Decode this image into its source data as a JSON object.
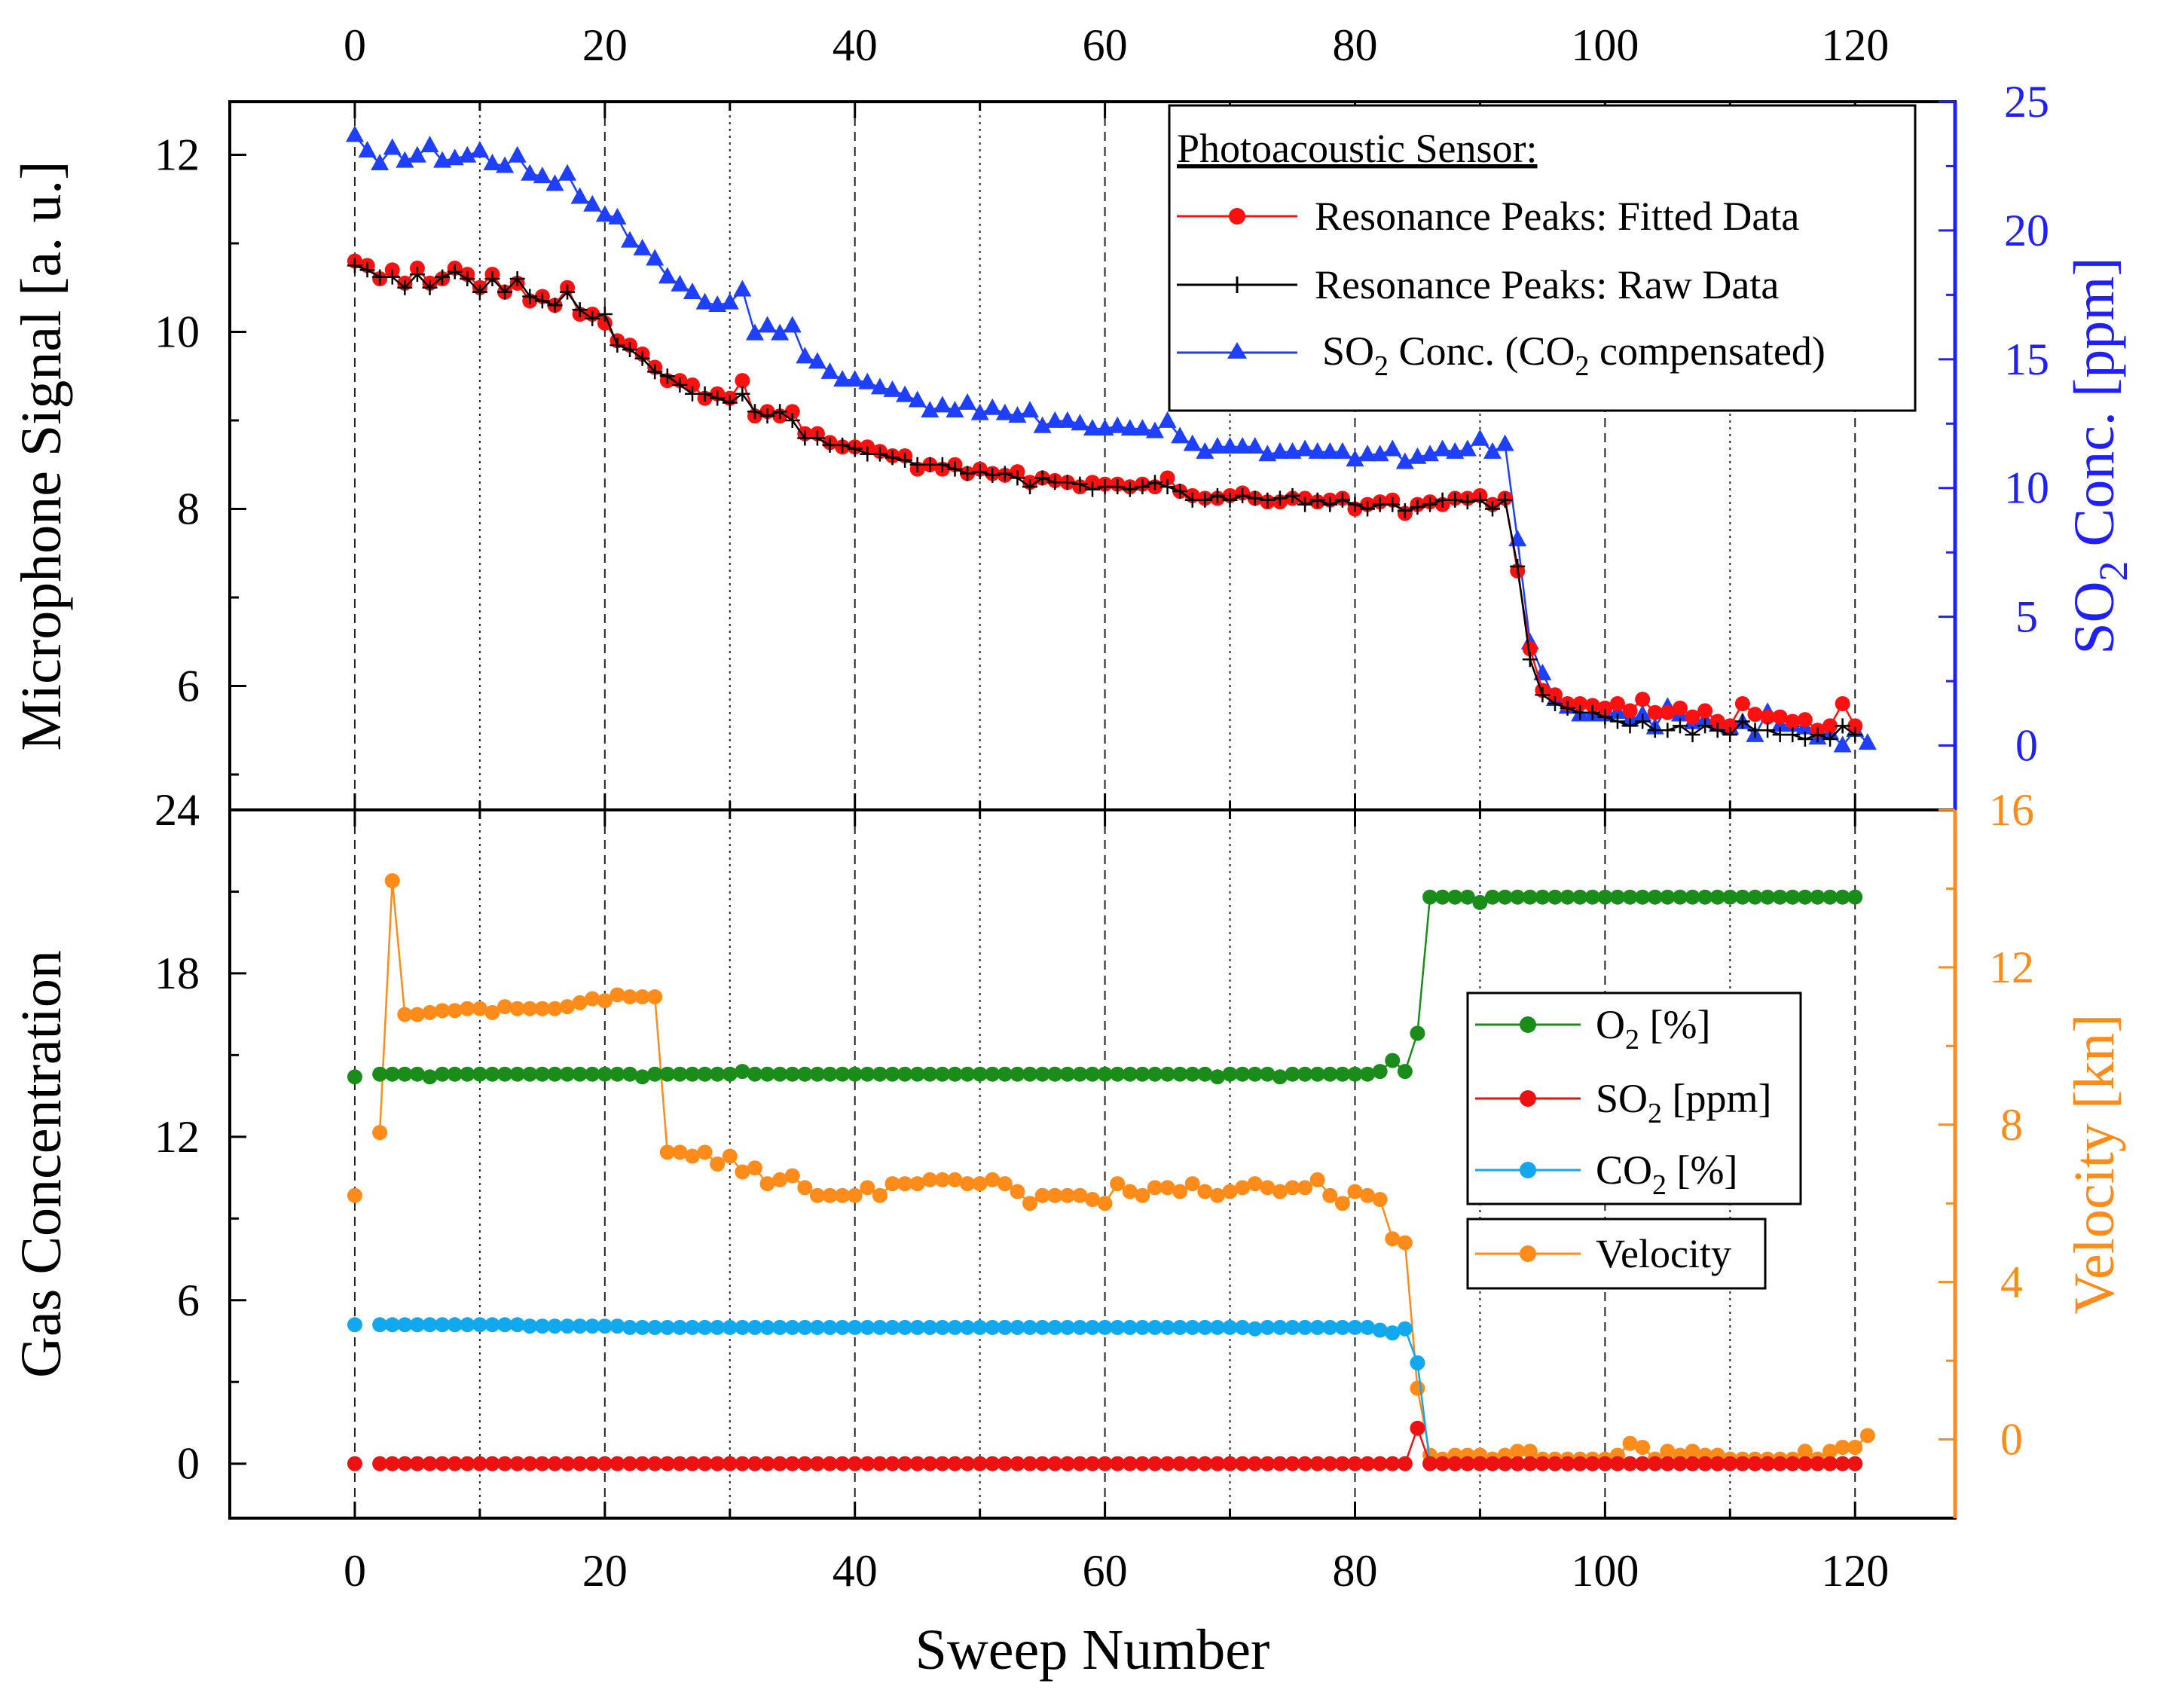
{
  "chart_data": [
    {
      "type": "line",
      "panel": "top",
      "title": "",
      "xlabel": "Sweep Number",
      "ylabel": "Microphone Signal [a. u.]",
      "y2label": "SO2 Conc. [ppm]",
      "x_ticks": [
        "0",
        "20",
        "40",
        "60",
        "80",
        "100",
        "120"
      ],
      "y_ticks": [
        "6",
        "8",
        "10",
        "12"
      ],
      "y2_ticks": [
        "0",
        "5",
        "10",
        "15",
        "20",
        "25"
      ],
      "xlim": [
        -10,
        128
      ],
      "ylim": [
        4.6,
        12.6
      ],
      "y2lim": [
        -2.5,
        25
      ],
      "y2_color": "#1f1fff",
      "legend": {
        "title": "Photoacoustic Sensor:",
        "placement": "top-right",
        "entries": [
          {
            "label": "Resonance Peaks: Fitted Data",
            "color": "#ff1010",
            "marker": "circle"
          },
          {
            "label": "Resonance Peaks: Raw Data",
            "color": "#000000",
            "marker": "plus"
          },
          {
            "label_main": "SO",
            "label_sub": "2",
            "label_mid": " Conc.  (CO",
            "label_sub2": "2",
            "label_end": " compensated)",
            "color": "#1f3fff",
            "marker": "triangle"
          }
        ]
      },
      "series": [
        {
          "name": "Resonance Peaks: Fitted Data",
          "axis": "left",
          "color": "#ff1010",
          "marker": "circle",
          "x_start": 0,
          "values": [
            10.8,
            10.75,
            10.6,
            10.7,
            10.55,
            10.72,
            10.55,
            10.6,
            10.72,
            10.65,
            10.5,
            10.65,
            10.45,
            10.55,
            10.35,
            10.4,
            10.3,
            10.5,
            10.2,
            10.2,
            10.1,
            9.9,
            9.85,
            9.75,
            9.6,
            9.45,
            9.45,
            9.4,
            9.25,
            9.3,
            9.25,
            9.45,
            9.05,
            9.1,
            9.05,
            9.1,
            8.85,
            8.85,
            8.75,
            8.7,
            8.7,
            8.7,
            8.65,
            8.6,
            8.6,
            8.45,
            8.5,
            8.45,
            8.5,
            8.4,
            8.45,
            8.4,
            8.38,
            8.42,
            8.3,
            8.35,
            8.32,
            8.3,
            8.25,
            8.3,
            8.28,
            8.28,
            8.25,
            8.28,
            8.25,
            8.35,
            8.2,
            8.15,
            8.12,
            8.12,
            8.15,
            8.18,
            8.12,
            8.08,
            8.08,
            8.12,
            8.12,
            8.08,
            8.1,
            8.12,
            8.0,
            8.05,
            8.08,
            8.1,
            7.95,
            8.05,
            8.08,
            8.05,
            8.12,
            8.12,
            8.15,
            8.05,
            8.12,
            7.3,
            6.42,
            5.95,
            5.9,
            5.8,
            5.8,
            5.78,
            5.75,
            5.8,
            5.72,
            5.85,
            5.7,
            5.7,
            5.75,
            5.65,
            5.72,
            5.6,
            5.55,
            5.8,
            5.68,
            5.65,
            5.65,
            5.6,
            5.62,
            5.5,
            5.55,
            5.8,
            5.55
          ]
        },
        {
          "name": "Resonance Peaks: Raw Data",
          "axis": "left",
          "color": "#000000",
          "marker": "plus",
          "x_start": 0,
          "values": [
            10.75,
            10.7,
            10.62,
            10.62,
            10.5,
            10.65,
            10.5,
            10.62,
            10.68,
            10.6,
            10.45,
            10.6,
            10.45,
            10.6,
            10.4,
            10.35,
            10.3,
            10.45,
            10.25,
            10.15,
            10.2,
            9.85,
            9.8,
            9.7,
            9.55,
            9.5,
            9.4,
            9.3,
            9.3,
            9.25,
            9.2,
            9.3,
            9.1,
            9.05,
            9.1,
            9.0,
            8.8,
            8.8,
            8.72,
            8.72,
            8.68,
            8.62,
            8.62,
            8.58,
            8.55,
            8.5,
            8.5,
            8.5,
            8.45,
            8.4,
            8.42,
            8.38,
            8.4,
            8.35,
            8.25,
            8.35,
            8.3,
            8.3,
            8.28,
            8.22,
            8.25,
            8.25,
            8.22,
            8.25,
            8.3,
            8.25,
            8.2,
            8.1,
            8.1,
            8.15,
            8.1,
            8.15,
            8.12,
            8.1,
            8.12,
            8.15,
            8.05,
            8.1,
            8.05,
            8.1,
            8.05,
            8.0,
            8.05,
            8.05,
            7.98,
            8.02,
            8.05,
            8.1,
            8.1,
            8.08,
            8.1,
            8.0,
            8.1,
            7.35,
            6.3,
            5.9,
            5.8,
            5.75,
            5.7,
            5.7,
            5.65,
            5.6,
            5.55,
            5.6,
            5.5,
            5.5,
            5.55,
            5.45,
            5.55,
            5.5,
            5.45,
            5.6,
            5.5,
            5.5,
            5.45,
            5.45,
            5.4,
            5.45,
            5.4,
            5.55,
            5.45
          ]
        },
        {
          "name": "SO2 Conc. (CO2 compensated)",
          "axis": "right",
          "color": "#1f3fff",
          "marker": "triangle",
          "x_start": 0,
          "values": [
            23.7,
            23.1,
            22.6,
            23.2,
            22.7,
            22.9,
            23.3,
            22.7,
            22.8,
            22.9,
            23.1,
            22.6,
            22.5,
            22.9,
            22.2,
            22.1,
            21.8,
            22.2,
            21.3,
            21.0,
            20.6,
            20.5,
            19.6,
            19.3,
            18.9,
            18.2,
            17.9,
            17.6,
            17.2,
            17.1,
            17.2,
            17.7,
            16.0,
            16.3,
            16.0,
            16.3,
            15.1,
            14.9,
            14.5,
            14.2,
            14.2,
            14.1,
            13.9,
            13.8,
            13.6,
            13.4,
            13.0,
            13.2,
            13.0,
            13.3,
            12.9,
            13.1,
            12.9,
            12.8,
            13.0,
            12.4,
            12.6,
            12.6,
            12.5,
            12.3,
            12.3,
            12.4,
            12.3,
            12.3,
            12.2,
            12.6,
            12.0,
            11.7,
            11.4,
            11.6,
            11.6,
            11.6,
            11.6,
            11.3,
            11.4,
            11.4,
            11.5,
            11.4,
            11.4,
            11.4,
            11.1,
            11.3,
            11.3,
            11.5,
            11.0,
            11.2,
            11.3,
            11.5,
            11.4,
            11.5,
            11.9,
            11.4,
            11.7,
            8.0,
            4.0,
            2.8,
            1.8,
            1.5,
            1.2,
            1.2,
            1.2,
            1.3,
            1.0,
            1.2,
            0.7,
            1.5,
            1.2,
            0.9,
            1.0,
            0.8,
            0.7,
            0.9,
            0.4,
            1.3,
            0.8,
            0.8,
            0.7,
            0.3,
            0.5,
            0.0,
            0.6,
            0.1
          ]
        }
      ]
    },
    {
      "type": "line",
      "panel": "bottom",
      "title": "",
      "xlabel": "Sweep Number",
      "ylabel": "Gas Concentration",
      "y2label": "Velocity [kn]",
      "x_ticks": [
        "0",
        "20",
        "40",
        "60",
        "80",
        "100",
        "120"
      ],
      "y_ticks": [
        "0",
        "6",
        "12",
        "18",
        "24"
      ],
      "y2_ticks": [
        "0",
        "4",
        "8",
        "12",
        "16"
      ],
      "xlim": [
        -10,
        128
      ],
      "ylim": [
        -2,
        24
      ],
      "y2lim": [
        -2,
        16
      ],
      "y2_color": "#ff8c1a",
      "legend": {
        "placement": "center-right",
        "entries": [
          {
            "label_main": "O",
            "label_sub": "2",
            "label_end": " [%]",
            "color": "#1a8c1a"
          },
          {
            "label_main": "SO",
            "label_sub": "2",
            "label_end": " [ppm]",
            "color": "#ee1111"
          },
          {
            "label_main": "CO",
            "label_sub": "2",
            "label_end": " [%]",
            "color": "#12a8ee"
          },
          {
            "label": "Velocity",
            "color": "#ff8c1a"
          }
        ]
      },
      "series": [
        {
          "name": "O2 [%]",
          "axis": "left",
          "color": "#1a8c1a",
          "marker": "circle",
          "x_start": 0,
          "values": [
            14.2,
            null,
            14.3,
            14.3,
            14.3,
            14.3,
            14.2,
            14.3,
            14.3,
            14.3,
            14.3,
            14.3,
            14.3,
            14.3,
            14.3,
            14.3,
            14.3,
            14.3,
            14.3,
            14.3,
            14.3,
            14.3,
            14.3,
            14.2,
            14.3,
            14.3,
            14.3,
            14.3,
            14.3,
            14.3,
            14.3,
            14.4,
            14.3,
            14.3,
            14.3,
            14.3,
            14.3,
            14.3,
            14.3,
            14.3,
            14.3,
            14.3,
            14.3,
            14.3,
            14.3,
            14.3,
            14.3,
            14.3,
            14.3,
            14.3,
            14.3,
            14.3,
            14.3,
            14.3,
            14.3,
            14.3,
            14.3,
            14.3,
            14.3,
            14.3,
            14.3,
            14.3,
            14.3,
            14.3,
            14.3,
            14.3,
            14.3,
            14.3,
            14.3,
            14.2,
            14.3,
            14.3,
            14.3,
            14.3,
            14.2,
            14.3,
            14.3,
            14.3,
            14.3,
            14.3,
            14.3,
            14.3,
            14.4,
            14.8,
            14.4,
            15.8,
            20.8,
            20.8,
            20.8,
            20.8,
            20.6,
            20.8,
            20.8,
            20.8,
            20.8,
            20.8,
            20.8,
            20.8,
            20.8,
            20.8,
            20.8,
            20.8,
            20.8,
            20.8,
            20.8,
            20.8,
            20.8,
            20.8,
            20.8,
            20.8,
            20.8,
            20.8,
            20.8,
            20.8,
            20.8,
            20.8,
            20.8,
            20.8,
            20.8,
            20.8,
            20.8
          ]
        },
        {
          "name": "SO2 [ppm]",
          "axis": "left",
          "color": "#ee1111",
          "marker": "circle",
          "x_start": 0,
          "values": [
            0,
            null,
            0,
            0,
            0,
            0,
            0,
            0,
            0,
            0,
            0,
            0,
            0,
            0,
            0,
            0,
            0,
            0,
            0,
            0,
            0,
            0,
            0,
            0,
            0,
            0,
            0,
            0,
            0,
            0,
            0,
            0,
            0,
            0,
            0,
            0,
            0,
            0,
            0,
            0,
            0,
            0,
            0,
            0,
            0,
            0,
            0,
            0,
            0,
            0,
            0,
            0,
            0,
            0,
            0,
            0,
            0,
            0,
            0,
            0,
            0,
            0,
            0,
            0,
            0,
            0,
            0,
            0,
            0,
            0,
            0,
            0,
            0,
            0,
            0,
            0,
            0,
            0,
            0,
            0,
            0,
            0,
            0,
            0,
            0,
            1.3,
            0,
            0,
            0,
            0,
            0,
            0,
            0,
            0,
            0,
            0,
            0,
            0,
            0,
            0,
            0,
            0,
            0,
            0,
            0,
            0,
            0,
            0,
            0,
            0,
            0,
            0,
            0,
            0,
            0,
            0,
            0,
            0,
            0,
            0,
            0
          ]
        },
        {
          "name": "CO2 [%]",
          "axis": "left",
          "color": "#12a8ee",
          "marker": "circle",
          "x_start": 0,
          "values": [
            5.1,
            null,
            5.1,
            5.1,
            5.1,
            5.1,
            5.1,
            5.1,
            5.1,
            5.1,
            5.1,
            5.1,
            5.1,
            5.1,
            5.05,
            5.05,
            5.05,
            5.05,
            5.05,
            5.05,
            5.05,
            5.05,
            5.0,
            5.0,
            5.0,
            5.0,
            5.0,
            5.0,
            5.0,
            5.0,
            5.0,
            5.0,
            5.0,
            5.0,
            5.0,
            5.0,
            5.0,
            5.0,
            5.0,
            5.0,
            5.0,
            5.0,
            5.0,
            5.0,
            5.0,
            5.0,
            5.0,
            5.0,
            5.0,
            5.0,
            5.0,
            5.0,
            5.0,
            5.0,
            5.0,
            5.0,
            5.0,
            5.0,
            5.0,
            5.0,
            5.0,
            5.0,
            5.0,
            5.0,
            5.0,
            5.0,
            5.0,
            5.0,
            5.0,
            5.0,
            5.0,
            5.0,
            4.95,
            5.0,
            5.0,
            5.0,
            5.0,
            5.0,
            5.0,
            5.0,
            5.0,
            5.0,
            4.9,
            4.8,
            4.95,
            3.7,
            0,
            0,
            0,
            0,
            0,
            0,
            0,
            0,
            0,
            0,
            0,
            0,
            0,
            0,
            0,
            0,
            0,
            0,
            0,
            0,
            0,
            0,
            0,
            0,
            0,
            0,
            0,
            0,
            0,
            0,
            0,
            0,
            0,
            0,
            0
          ]
        },
        {
          "name": "Velocity",
          "axis": "right",
          "color": "#ff8c1a",
          "marker": "circle",
          "x_start": 0,
          "values": [
            6.2,
            null,
            7.8,
            14.2,
            10.8,
            10.8,
            10.85,
            10.9,
            10.9,
            10.95,
            10.95,
            10.85,
            11.0,
            10.95,
            10.95,
            10.95,
            10.95,
            11.0,
            11.1,
            11.2,
            11.15,
            11.3,
            11.25,
            11.25,
            11.25,
            7.3,
            7.3,
            7.2,
            7.3,
            7.0,
            7.2,
            6.8,
            6.9,
            6.5,
            6.6,
            6.7,
            6.4,
            6.2,
            6.2,
            6.2,
            6.2,
            6.4,
            6.2,
            6.5,
            6.5,
            6.5,
            6.6,
            6.6,
            6.6,
            6.5,
            6.5,
            6.6,
            6.5,
            6.3,
            6.0,
            6.2,
            6.2,
            6.2,
            6.2,
            6.1,
            6.0,
            6.5,
            6.3,
            6.2,
            6.4,
            6.4,
            6.3,
            6.5,
            6.3,
            6.2,
            6.3,
            6.4,
            6.5,
            6.4,
            6.3,
            6.4,
            6.4,
            6.6,
            6.2,
            6.0,
            6.3,
            6.2,
            6.1,
            5.1,
            5.0,
            1.3,
            -0.4,
            -0.5,
            -0.4,
            -0.4,
            -0.4,
            -0.5,
            -0.4,
            -0.3,
            -0.3,
            -0.5,
            -0.5,
            -0.5,
            -0.5,
            -0.5,
            -0.5,
            -0.4,
            -0.1,
            -0.2,
            -0.5,
            -0.3,
            -0.4,
            -0.3,
            -0.4,
            -0.4,
            -0.5,
            -0.5,
            -0.5,
            -0.5,
            -0.5,
            -0.5,
            -0.3,
            -0.5,
            -0.3,
            -0.2,
            -0.2,
            0.1
          ]
        }
      ]
    }
  ]
}
